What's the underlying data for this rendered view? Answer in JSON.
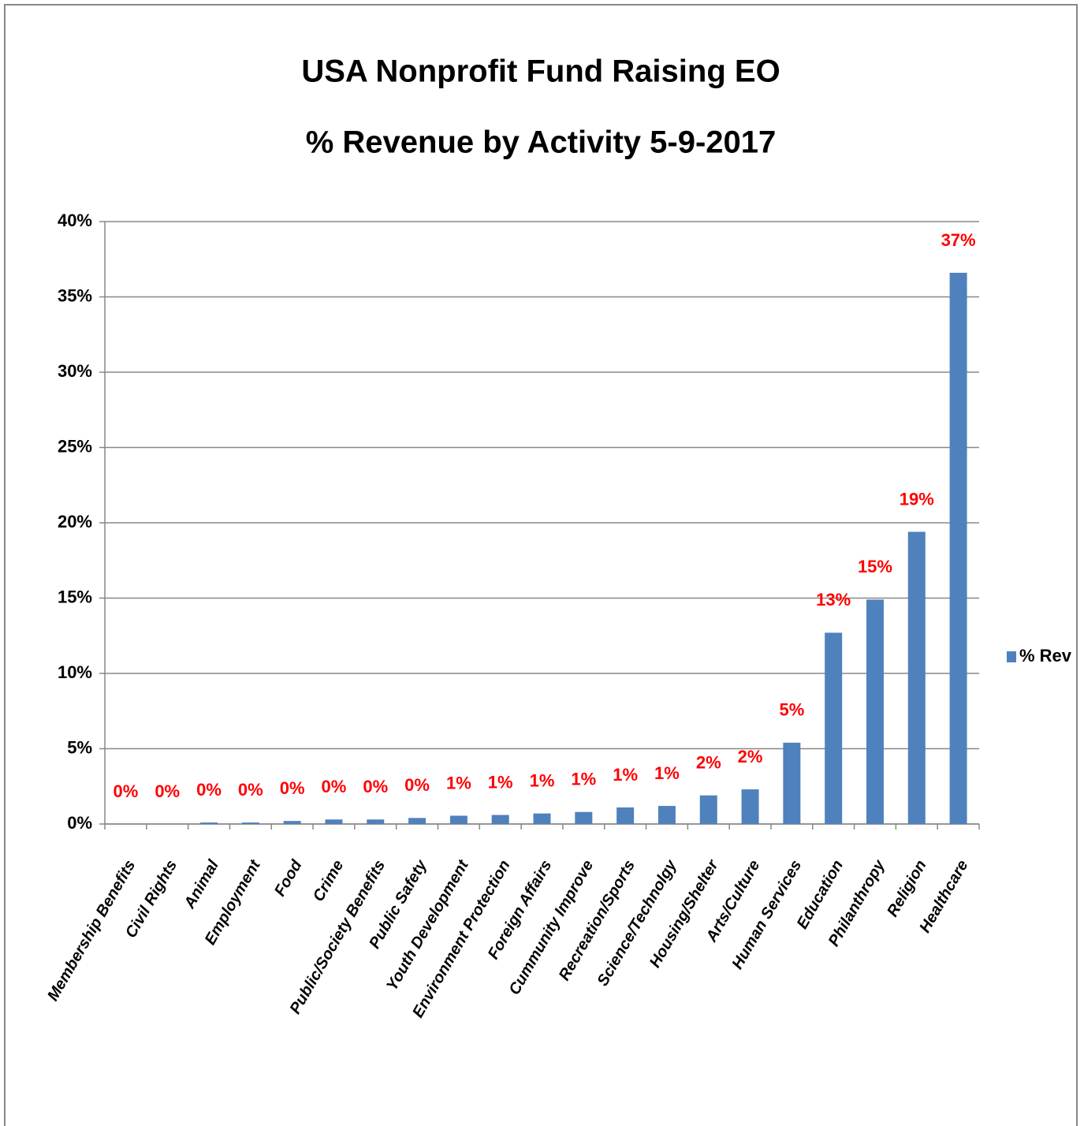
{
  "chart_data": {
    "type": "bar",
    "title": "USA Nonprofit Fund Raising EO",
    "subtitle": "% Revenue by Activity 5-9-2017",
    "categories": [
      "Membership Benefits",
      "Civil Rights",
      "Animal",
      "Employment",
      "Food",
      "Crime",
      "Public/Society Benefits",
      "Public Safety",
      "Youth Development",
      "Environment Protection",
      "Foreign Affairs",
      "Cummunity Improve",
      "Recreation/Sports",
      "Science/Technolgy",
      "Housing/Shelter",
      "Arts/Culture",
      "Human Services",
      "Education",
      "Philanthropy",
      "Religion",
      "Healthcare"
    ],
    "series": [
      {
        "name": "% Rev",
        "color": "#4f81bd",
        "values": [
          0.0,
          0.0,
          0.1,
          0.1,
          0.2,
          0.3,
          0.3,
          0.4,
          0.55,
          0.6,
          0.7,
          0.8,
          1.1,
          1.2,
          1.9,
          2.3,
          5.4,
          12.7,
          14.9,
          19.4,
          36.6
        ],
        "value_labels": [
          "0%",
          "0%",
          "0%",
          "0%",
          "0%",
          "0%",
          "0%",
          "0%",
          "1%",
          "1%",
          "1%",
          "1%",
          "1%",
          "1%",
          "2%",
          "2%",
          "5%",
          "13%",
          "15%",
          "19%",
          "37%"
        ]
      }
    ],
    "ylim": [
      0,
      40
    ],
    "yticks": [
      {
        "value": 0,
        "label": "0%"
      },
      {
        "value": 5,
        "label": "5%"
      },
      {
        "value": 10,
        "label": "10%"
      },
      {
        "value": 15,
        "label": "15%"
      },
      {
        "value": 20,
        "label": "20%"
      },
      {
        "value": 25,
        "label": "25%"
      },
      {
        "value": 30,
        "label": "30%"
      },
      {
        "value": 35,
        "label": "35%"
      },
      {
        "value": 40,
        "label": "40%"
      }
    ],
    "grid": true,
    "legend": "right"
  }
}
